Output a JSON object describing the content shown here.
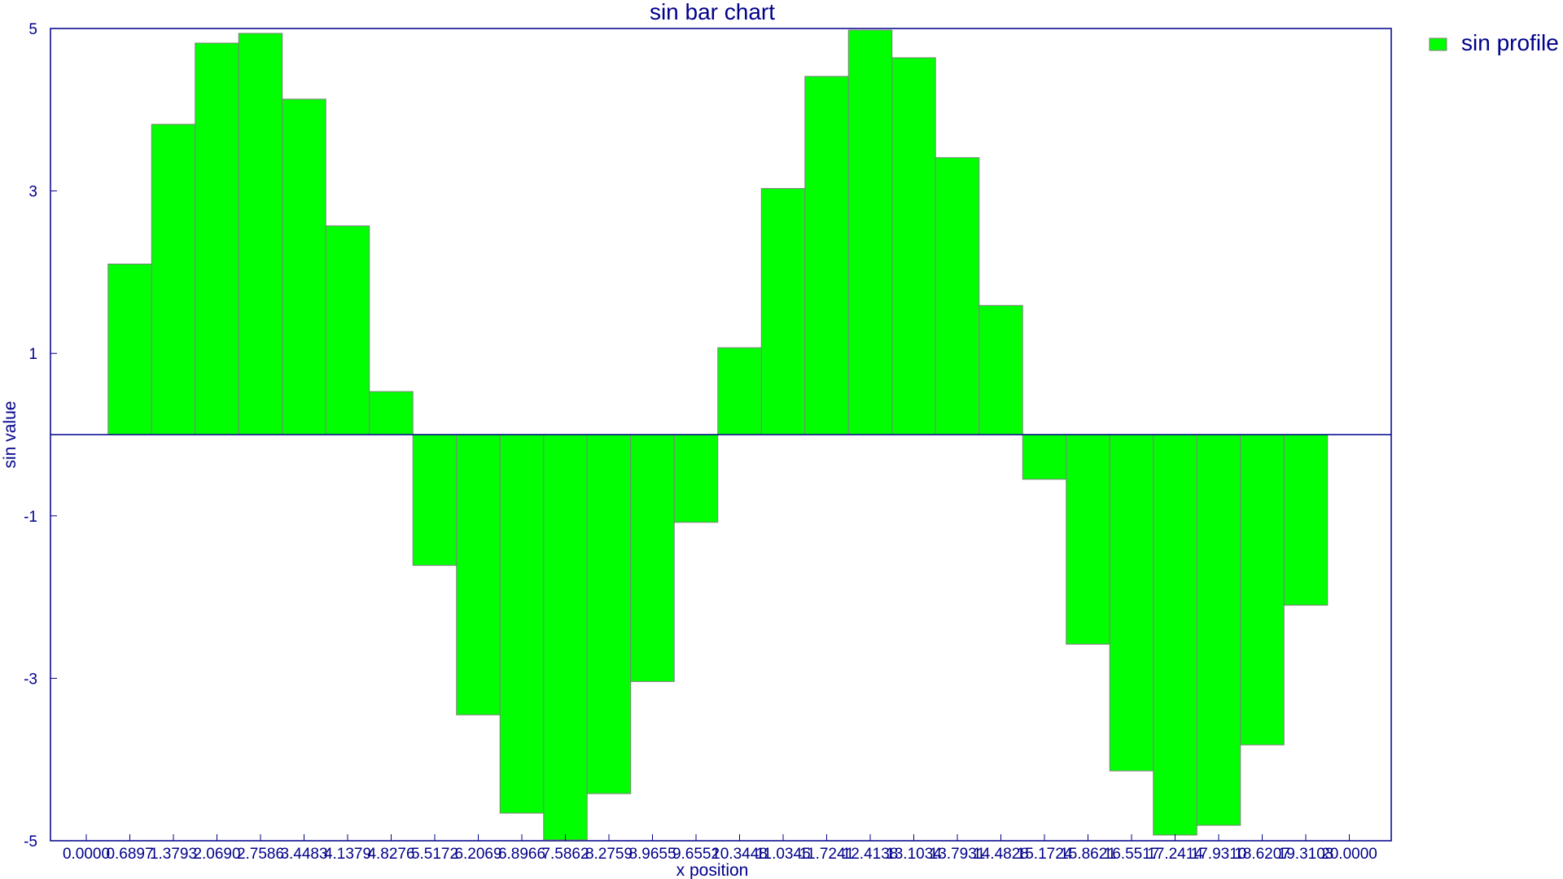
{
  "chart_data": {
    "type": "bar",
    "title": "sin bar chart",
    "xlabel": "x position",
    "ylabel": "sin value",
    "ylim": [
      -5,
      5
    ],
    "yticks": [
      "5",
      "3",
      "1",
      "-1",
      "-3",
      "-5"
    ],
    "xlim": [
      0,
      20
    ],
    "xticks": [
      "0.0000",
      "0.6897",
      "1.3793",
      "2.0690",
      "2.7586",
      "3.4483",
      "4.1379",
      "4.8276",
      "5.5172",
      "6.2069",
      "6.8966",
      "7.5862",
      "8.2759",
      "8.9655",
      "9.6552",
      "10.3448",
      "11.0345",
      "11.7241",
      "12.4138",
      "13.1034",
      "13.7931",
      "14.4828",
      "15.1724",
      "15.8621",
      "16.5517",
      "17.2414",
      "17.9310",
      "18.6207",
      "19.3103",
      "20.0000"
    ],
    "grid": false,
    "legend_position": "top-right",
    "series": [
      {
        "name": "sin profile",
        "color": "#00FF00",
        "values": [
          0,
          2.1,
          3.82,
          4.82,
          4.94,
          4.13,
          2.57,
          0.53,
          -1.61,
          -3.45,
          -4.66,
          -4.99,
          -4.42,
          -3.04,
          -1.08,
          1.07,
          3.03,
          4.41,
          4.98,
          4.64,
          3.41,
          1.59,
          -0.55,
          -2.58,
          -4.14,
          -4.93,
          -4.81,
          -3.82,
          -2.1,
          0
        ]
      }
    ]
  }
}
